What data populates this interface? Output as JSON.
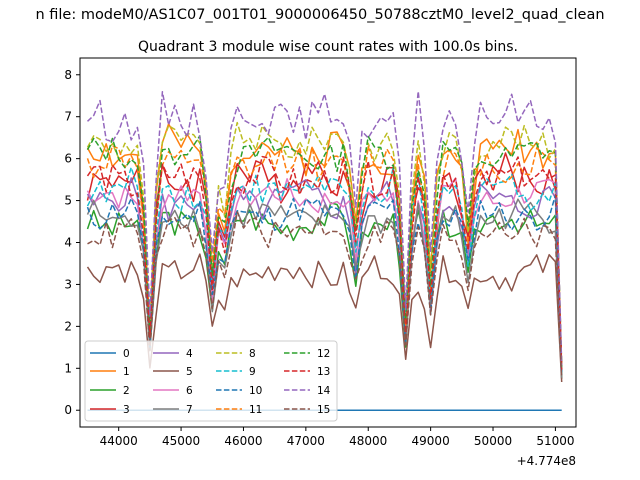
{
  "suptitle": "n file: modeM0/AS1C07_001T01_9000006450_50788cztM0_level2_quad_clean",
  "chart_data": {
    "type": "line",
    "title": "Quadrant 3 module wise count rates with 100.0s bins.",
    "xlabel": "",
    "ylabel": "",
    "x_offset_label": "+4.774e8",
    "xlim": [
      43380,
      51330
    ],
    "ylim": [
      -0.4,
      8.4
    ],
    "x_ticks": [
      44000,
      45000,
      46000,
      47000,
      48000,
      49000,
      50000,
      51000
    ],
    "y_ticks": [
      0,
      1,
      2,
      3,
      4,
      5,
      6,
      7,
      8
    ],
    "x_start": 43500,
    "x_step": 100,
    "n_points": 77,
    "dips": [
      {
        "x": 44500,
        "depth": 0.3
      },
      {
        "x": 45500,
        "depth": 0.55
      },
      {
        "x": 45700,
        "depth": 0.75
      },
      {
        "x": 47800,
        "depth": 0.7
      },
      {
        "x": 48600,
        "depth": 0.35
      },
      {
        "x": 49000,
        "depth": 0.5
      },
      {
        "x": 49600,
        "depth": 0.7
      },
      {
        "x": 51200,
        "depth": 0.15
      }
    ],
    "legend": {
      "location": "lower-left",
      "columns": 4
    },
    "series": [
      {
        "name": "0",
        "color": "#1f77b4",
        "dash": "solid",
        "base": 0.0,
        "amp": 0.0,
        "seed": 1
      },
      {
        "name": "1",
        "color": "#ff7f0e",
        "dash": "solid",
        "base": 6.2,
        "amp": 0.45,
        "seed": 2
      },
      {
        "name": "2",
        "color": "#2ca02c",
        "dash": "solid",
        "base": 4.5,
        "amp": 0.35,
        "seed": 3
      },
      {
        "name": "3",
        "color": "#d62728",
        "dash": "solid",
        "base": 5.6,
        "amp": 0.5,
        "seed": 4
      },
      {
        "name": "4",
        "color": "#9467bd",
        "dash": "solid",
        "base": 5.0,
        "amp": 0.4,
        "seed": 5
      },
      {
        "name": "5",
        "color": "#8c564b",
        "dash": "solid",
        "base": 3.3,
        "amp": 0.35,
        "seed": 6
      },
      {
        "name": "6",
        "color": "#e377c2",
        "dash": "solid",
        "base": 5.1,
        "amp": 0.35,
        "seed": 7
      },
      {
        "name": "7",
        "color": "#7f7f7f",
        "dash": "solid",
        "base": 4.6,
        "amp": 0.35,
        "seed": 8
      },
      {
        "name": "8",
        "color": "#bcbd22",
        "dash": "dashed",
        "base": 6.4,
        "amp": 0.35,
        "seed": 9
      },
      {
        "name": "9",
        "color": "#17becf",
        "dash": "dashed",
        "base": 5.3,
        "amp": 0.4,
        "seed": 10
      },
      {
        "name": "10",
        "color": "#1f77b4",
        "dash": "dashed",
        "base": 4.7,
        "amp": 0.35,
        "seed": 11
      },
      {
        "name": "11",
        "color": "#ff7f0e",
        "dash": "dashed",
        "base": 5.9,
        "amp": 0.4,
        "seed": 12
      },
      {
        "name": "12",
        "color": "#2ca02c",
        "dash": "dashed",
        "base": 6.1,
        "amp": 0.35,
        "seed": 13
      },
      {
        "name": "13",
        "color": "#d62728",
        "dash": "dashed",
        "base": 5.5,
        "amp": 0.4,
        "seed": 14
      },
      {
        "name": "14",
        "color": "#9467bd",
        "dash": "dashed",
        "base": 7.0,
        "amp": 0.45,
        "seed": 15
      },
      {
        "name": "15",
        "color": "#8c564b",
        "dash": "dashed",
        "base": 4.3,
        "amp": 0.35,
        "seed": 16
      }
    ]
  }
}
